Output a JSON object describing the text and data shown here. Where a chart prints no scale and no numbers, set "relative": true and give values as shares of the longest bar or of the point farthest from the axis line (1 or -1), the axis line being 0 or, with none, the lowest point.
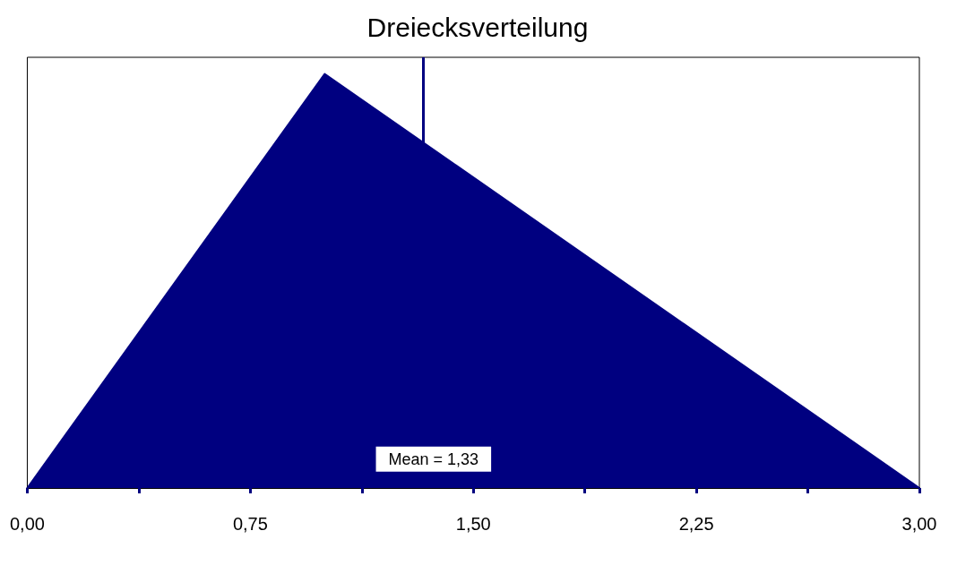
{
  "chart_data": {
    "type": "area",
    "title": "Dreiecksverteilung",
    "relative": true,
    "x": [
      0,
      1,
      3
    ],
    "values": [
      0,
      1,
      0
    ],
    "color": "#000080",
    "xlim": [
      0,
      3
    ],
    "xticks": [
      {
        "value": 0,
        "label": "0,00"
      },
      {
        "value": 0.375,
        "label": null
      },
      {
        "value": 0.75,
        "label": "0,75"
      },
      {
        "value": 1.125,
        "label": null
      },
      {
        "value": 1.5,
        "label": "1,50"
      },
      {
        "value": 1.875,
        "label": null
      },
      {
        "value": 2.25,
        "label": "2,25"
      },
      {
        "value": 2.625,
        "label": null
      },
      {
        "value": 3,
        "label": "3,00"
      }
    ],
    "ref_lines": [
      {
        "axis": "x",
        "value": 1.33,
        "label": "Mean = 1,33",
        "color": "#000080"
      }
    ],
    "grid": false
  }
}
